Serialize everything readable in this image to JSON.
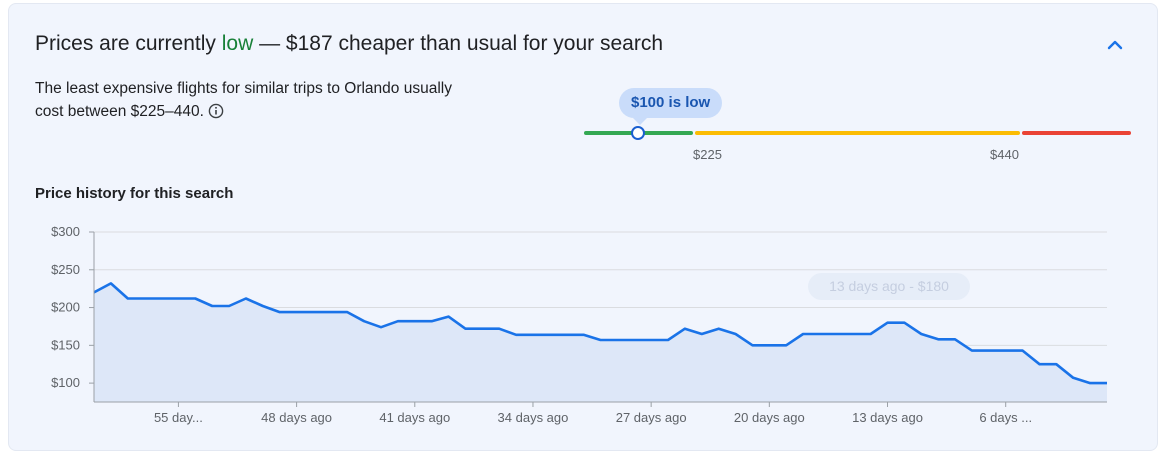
{
  "header": {
    "prefix": "Prices are currently ",
    "status_word": "low",
    "suffix": " — $187 cheaper than usual for your search"
  },
  "description": "The least expensive flights for similar trips to Orlando usually cost between $225–440.",
  "range": {
    "bubble": "$100 is low",
    "low_label": "$225",
    "high_label": "$440",
    "current_value": 100,
    "colors": {
      "low": "#34a853",
      "mid": "#fbbc04",
      "high": "#ea4335",
      "accent": "#1a73e8"
    }
  },
  "history_title": "Price history for this search",
  "tooltip": "13 days ago - $180",
  "chart_data": {
    "type": "area",
    "ylim": [
      75,
      300
    ],
    "yticks": [
      "$300",
      "$250",
      "$200",
      "$150",
      "$100"
    ],
    "ytick_values": [
      300,
      250,
      200,
      150,
      100
    ],
    "xtick_labels": [
      "55 day...",
      "48 days ago",
      "41 days ago",
      "34 days ago",
      "27 days ago",
      "20 days ago",
      "13 days ago",
      "6 days ..."
    ],
    "xtick_values": [
      55,
      48,
      41,
      34,
      27,
      20,
      13,
      6
    ],
    "x_days_ago": [
      60,
      59,
      58,
      57,
      56,
      55,
      54,
      53,
      52,
      51,
      50,
      49,
      48,
      47,
      46,
      45,
      44,
      43,
      42,
      41,
      40,
      39,
      38,
      37,
      36,
      35,
      34,
      33,
      32,
      31,
      30,
      29,
      28,
      27,
      26,
      25,
      24,
      23,
      22,
      21,
      20,
      19,
      18,
      17,
      16,
      15,
      14,
      13,
      12,
      11,
      10,
      9,
      8,
      7,
      6,
      5,
      4,
      3,
      2,
      1,
      0
    ],
    "values": [
      220,
      232,
      212,
      212,
      212,
      212,
      212,
      202,
      202,
      212,
      202,
      194,
      194,
      194,
      194,
      194,
      182,
      174,
      182,
      182,
      182,
      188,
      172,
      172,
      172,
      164,
      164,
      164,
      164,
      164,
      157,
      157,
      157,
      157,
      157,
      172,
      165,
      172,
      165,
      150,
      150,
      150,
      165,
      165,
      165,
      165,
      165,
      180,
      180,
      165,
      158,
      158,
      143,
      143,
      143,
      143,
      125,
      125,
      107,
      100,
      100
    ],
    "grid": true,
    "line_color": "#1a73e8",
    "fill_color": "#dde7f8"
  }
}
